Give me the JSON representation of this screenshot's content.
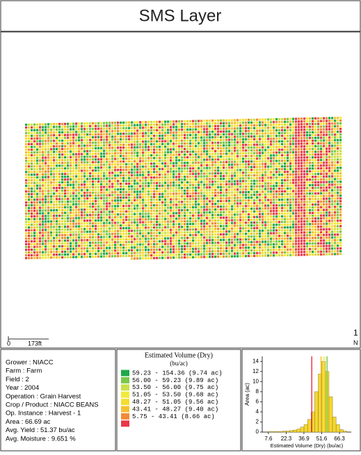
{
  "header": {
    "title": "SMS Layer"
  },
  "map": {
    "scale_start": "0",
    "scale_end": "173ft",
    "page_number": "1",
    "north": "N"
  },
  "info": {
    "lines": [
      "Grower : NIACC",
      "Farm : Farm",
      "Field : 2",
      "Year : 2004",
      "Operation  : Grain Harvest",
      "Crop / Product : NIACC  BEANS",
      "Op. Instance : Harvest - 1",
      "Area : 66.69 ac",
      "Avg. Yield : 51.37 bu/ac",
      "Avg. Moisture : 9.651 %"
    ]
  },
  "legend": {
    "title": "Estimated Volume (Dry)",
    "unit": "(bu/ac)",
    "entries": [
      {
        "color": "#1fa84a",
        "label": "59.23 - 154.36 (9.74 ac)"
      },
      {
        "color": "#7cc84a",
        "label": "56.00 - 59.23 (9.89 ac)"
      },
      {
        "color": "#c9e04a",
        "label": "53.50 - 56.00 (9.75 ac)"
      },
      {
        "color": "#f2ea3a",
        "label": "51.05 - 53.50 (9.68 ac)"
      },
      {
        "color": "#f5dc30",
        "label": "48.27 - 51.05 (9.56 ac)"
      },
      {
        "color": "#f5c030",
        "label": "43.41 - 48.27 (9.40 ac)"
      },
      {
        "color": "#f08a3a",
        "label": "5.75 - 43.41 (8.66 ac)"
      },
      {
        "color": "#e8384a",
        "label": ""
      }
    ]
  },
  "chart_data": {
    "type": "histogram",
    "ylabel": "Area (ac)",
    "xlabel": "Estimated Volume (Dry) (bu/ac)",
    "bins": [
      7.6,
      10.54,
      13.48,
      16.42,
      19.36,
      22.3,
      25.24,
      28.18,
      31.12,
      34.06,
      37.0,
      39.94,
      42.88,
      45.82,
      48.76,
      51.7,
      54.64,
      57.58,
      60.52,
      63.46,
      66.4,
      69.34,
      72.28
    ],
    "counts": [
      0.1,
      0.1,
      0.1,
      0.1,
      0.2,
      0.2,
      0.3,
      0.4,
      0.6,
      1,
      1.5,
      2.5,
      4,
      8,
      11.5,
      14,
      12,
      7,
      3,
      1.5,
      0.5,
      0.2
    ],
    "color": "#f5d830",
    "markers": [
      {
        "value": 43.41,
        "color": "#e8384a"
      },
      {
        "value": 51.05,
        "color": "#f5c030"
      },
      {
        "value": 53.5,
        "color": "#f2ea3a"
      },
      {
        "value": 56.0,
        "color": "#7cc84a"
      }
    ],
    "xlim": [
      2.5,
      76
    ],
    "ylim": [
      0,
      15
    ],
    "xticks": [
      7.6,
      22.3,
      36.9,
      51.6,
      66.3
    ],
    "yticks": [
      0,
      2,
      4,
      6,
      8,
      10,
      12,
      14
    ]
  }
}
